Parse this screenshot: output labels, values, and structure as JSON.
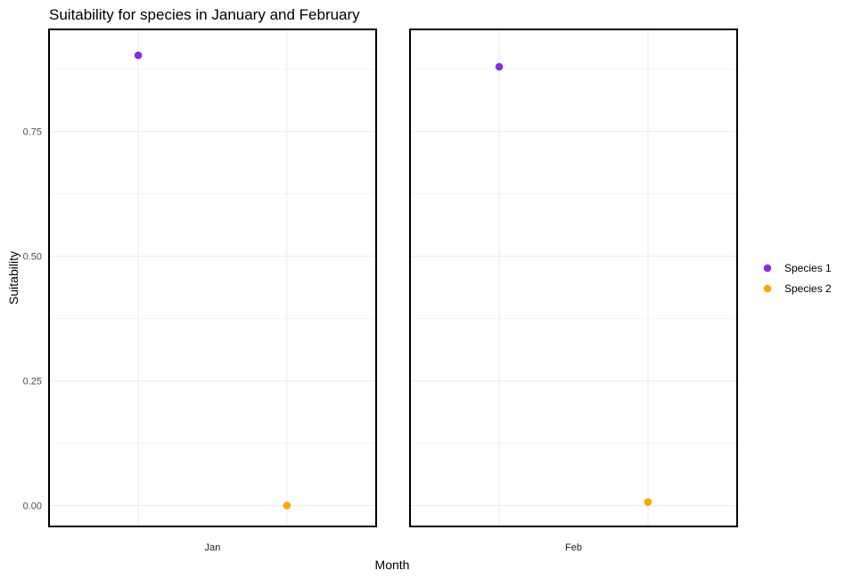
{
  "chart_data": {
    "type": "scatter",
    "title": "Suitability for species in January and February",
    "xlabel": "Month",
    "ylabel": "Suitability",
    "ylim": [
      -0.042,
      0.955
    ],
    "y_ticks": [
      0.0,
      0.25,
      0.5,
      0.75
    ],
    "y_tick_labels": [
      "0.00",
      "0.25",
      "0.50",
      "0.75"
    ],
    "grid": true,
    "legend_position": "right",
    "panels": [
      {
        "label": "Jan",
        "categories": [
          "Species 1",
          "Species 2"
        ],
        "points": [
          {
            "series": "Species 1",
            "y": 0.903
          },
          {
            "series": "Species 2",
            "y": 0.0
          }
        ]
      },
      {
        "label": "Feb",
        "categories": [
          "Species 1",
          "Species 2"
        ],
        "points": [
          {
            "series": "Species 1",
            "y": 0.88
          },
          {
            "series": "Species 2",
            "y": 0.007
          }
        ]
      }
    ],
    "series": [
      {
        "name": "Species 1",
        "color": "#8a2be2"
      },
      {
        "name": "Species 2",
        "color": "#ffa500"
      }
    ]
  }
}
